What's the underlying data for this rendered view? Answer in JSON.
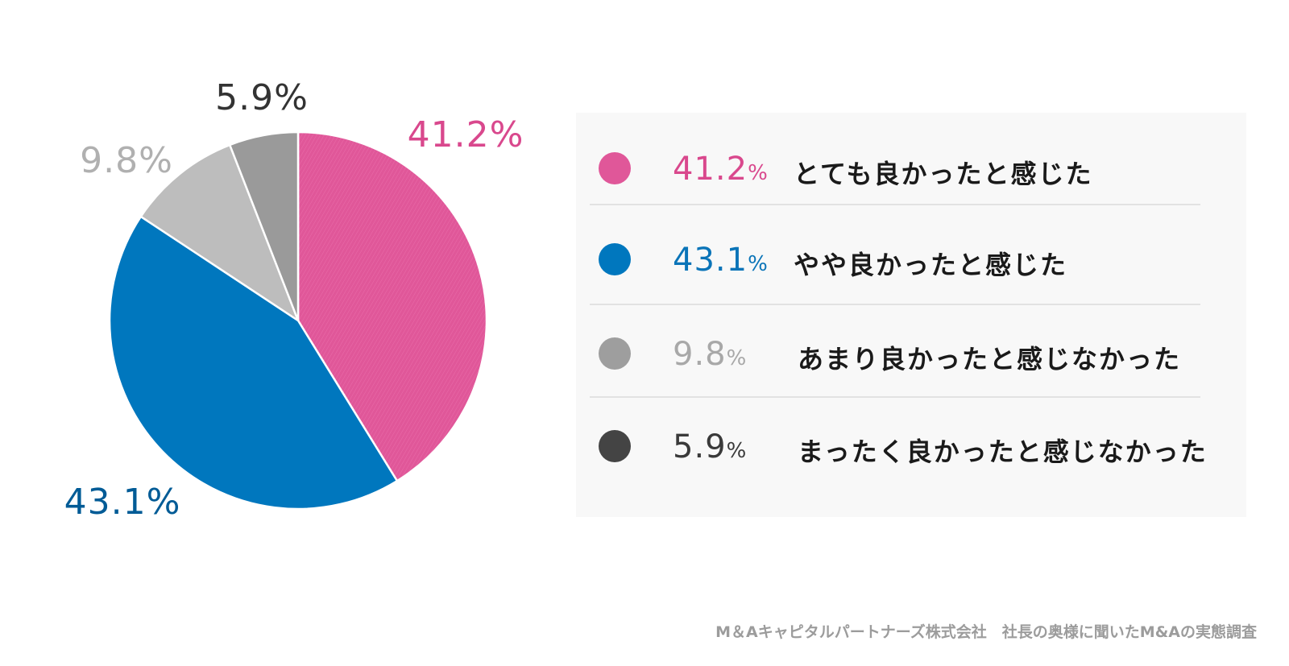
{
  "chart_data": {
    "type": "pie",
    "slices": [
      {
        "label": "とても良かったと感じた",
        "value": 41.2,
        "display": "41.2%",
        "color": "#e05799"
      },
      {
        "label": "やや良かったと感じた",
        "value": 43.1,
        "display": "43.1%",
        "color": "#0077be"
      },
      {
        "label": "あまり良かったと感じなかった",
        "value": 9.8,
        "display": "9.8%",
        "color": "#bdbdbd"
      },
      {
        "label": "まったく良かったと感じなかった",
        "value": 5.9,
        "display": "5.9%",
        "color": "#9a9a9a"
      }
    ],
    "label_colors": [
      "#d9488d",
      "#005b96",
      "#b0b0b0",
      "#333333"
    ],
    "legend_dot_colors": [
      "#e05799",
      "#0077be",
      "#9e9e9e",
      "#444444"
    ],
    "legend_text_colors": [
      "#d9488d",
      "#0a74b8",
      "#a8a8a8",
      "#3a3a3a"
    ],
    "legend_placement": "right"
  },
  "legend": {
    "items": [
      {
        "value": "41.2",
        "unit": "%",
        "label": "とても良かったと感じた"
      },
      {
        "value": "43.1",
        "unit": "%",
        "label": "やや良かったと感じた"
      },
      {
        "value": "9.8",
        "unit": "%",
        "label": "あまり良かったと感じなかった"
      },
      {
        "value": "5.9",
        "unit": "%",
        "label": "まったく良かったと感じなかった"
      }
    ]
  },
  "footer": {
    "source": "M＆Aキャピタルパートナーズ株式会社　社長の奥様に聞いたM&Aの実態調査"
  }
}
